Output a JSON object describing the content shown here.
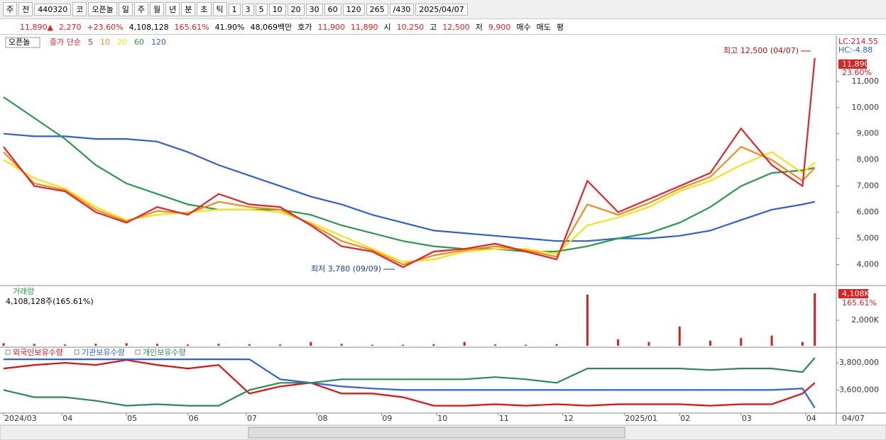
{
  "toolbar": {
    "items": [
      "주",
      "전",
      "440320",
      "코",
      "오픈놀",
      "일",
      "주",
      "월",
      "년",
      "분",
      "초",
      "틱",
      "1",
      "3",
      "5",
      "10",
      "20",
      "30",
      "60",
      "120",
      "265",
      "/430",
      "2025/04/07"
    ]
  },
  "infobar": {
    "items": [
      {
        "text": "11,890▲",
        "color": "#e02020"
      },
      {
        "text": "2,270",
        "color": "#e02020"
      },
      {
        "text": "+23.60%",
        "color": "#e02020"
      },
      {
        "text": "4,108,128",
        "color": "#000000"
      },
      {
        "text": "165.61%",
        "color": "#e02020"
      },
      {
        "text": "41.90%",
        "color": "#000000"
      },
      {
        "text": "48,069백만",
        "color": "#000000"
      },
      {
        "text": "호가",
        "color": "#000000"
      },
      {
        "text": "11,900",
        "color": "#e02020"
      },
      {
        "text": "11,890",
        "color": "#e02020"
      },
      {
        "text": "시",
        "color": "#000000"
      },
      {
        "text": "10,250",
        "color": "#e02020"
      },
      {
        "text": "고",
        "color": "#000000"
      },
      {
        "text": "12,500",
        "color": "#e02020"
      },
      {
        "text": "저",
        "color": "#000000"
      },
      {
        "text": "9,900",
        "color": "#e02020"
      },
      {
        "text": "매수",
        "color": "#000000"
      },
      {
        "text": "매도",
        "color": "#000000"
      },
      {
        "text": "평",
        "color": "#000000"
      }
    ]
  },
  "chart_data": [
    {
      "type": "line",
      "stock_name": "오픈놀",
      "legend_title": "종가 단순",
      "lc": "LC:214.55",
      "hc": "HC:-4.88",
      "last_price": "11,890",
      "last_change": "23.60%",
      "annotations": [
        "최고 12,500 (04/07)",
        "최저 3,780 (09/09)"
      ],
      "x": [
        0,
        10,
        20,
        30,
        40,
        50,
        60,
        70,
        80,
        90,
        100,
        110,
        120,
        130,
        140,
        150,
        160,
        170,
        180,
        190,
        200,
        210,
        220,
        230,
        240,
        250,
        260,
        264
      ],
      "xlim": [
        0,
        271
      ],
      "ylim": [
        3200,
        12700
      ],
      "yticks": [
        {
          "value": 4000,
          "label": "4,000"
        },
        {
          "value": 5000,
          "label": "5,000"
        },
        {
          "value": 6000,
          "label": "6,000"
        },
        {
          "value": 7000,
          "label": "7,000"
        },
        {
          "value": 8000,
          "label": "8,000"
        },
        {
          "value": 9000,
          "label": "9,000"
        },
        {
          "value": 10000,
          "label": "10,000"
        },
        {
          "value": 11000,
          "label": "11,000"
        }
      ],
      "series": [
        {
          "name": "120",
          "color": "#2f5fd8",
          "values": [
            9000,
            8900,
            8900,
            8800,
            8800,
            8700,
            8300,
            7800,
            7400,
            7000,
            6600,
            6300,
            5900,
            5600,
            5300,
            5200,
            5100,
            5000,
            4900,
            4900,
            5000,
            5000,
            5100,
            5300,
            5700,
            6100,
            6300,
            6400
          ]
        },
        {
          "name": "60",
          "color": "#2a9a4a",
          "values": [
            10400,
            9600,
            8800,
            7800,
            7100,
            6700,
            6300,
            6100,
            6100,
            6100,
            5900,
            5500,
            5200,
            4900,
            4700,
            4600,
            4600,
            4500,
            4500,
            4700,
            5000,
            5200,
            5600,
            6200,
            7000,
            7500,
            7600,
            7700
          ]
        },
        {
          "name": "20",
          "color": "#f2e21a",
          "values": [
            8000,
            7300,
            6900,
            6200,
            5700,
            5900,
            6000,
            6100,
            6100,
            6000,
            5600,
            5100,
            4600,
            4100,
            4200,
            4500,
            4600,
            4600,
            4400,
            5500,
            5800,
            6200,
            6800,
            7200,
            7800,
            8300,
            7500,
            7900
          ]
        },
        {
          "name": "10",
          "color": "#f08c1c",
          "values": [
            8300,
            7100,
            6850,
            6100,
            5650,
            6050,
            5950,
            6400,
            6200,
            6100,
            5550,
            4900,
            4550,
            4000,
            4350,
            4550,
            4700,
            4550,
            4300,
            6300,
            5900,
            6350,
            6900,
            7350,
            8500,
            8000,
            7200,
            7700
          ]
        },
        {
          "name": "5",
          "color": "#e0262b",
          "values": [
            8500,
            7000,
            6800,
            6000,
            5600,
            6200,
            5900,
            6700,
            6300,
            6200,
            5500,
            4700,
            4500,
            3900,
            4500,
            4600,
            4800,
            4500,
            4200,
            7200,
            6000,
            6500,
            7000,
            7500,
            9200,
            7800,
            7000,
            11890
          ]
        }
      ]
    },
    {
      "type": "bar",
      "title": "거래량",
      "subtitle": "4,108,128주(165.61%)",
      "last_volume": "4,108K",
      "last_ratio": "165.61%",
      "color": "#d02020",
      "ylim": [
        0,
        4550000
      ],
      "yticks": [
        {
          "value": 2000000,
          "label": "2,000K"
        }
      ],
      "values": [
        200000,
        150000,
        100000,
        150000,
        200000,
        150000,
        100000,
        150000,
        120000,
        100000,
        300000,
        150000,
        80000,
        80000,
        120000,
        300000,
        100000,
        80000,
        120000,
        4000000,
        500000,
        300000,
        1500000,
        400000,
        600000,
        800000,
        300000,
        4108128
      ]
    },
    {
      "type": "line",
      "ylim": [
        3430000,
        3910000
      ],
      "yticks": [
        {
          "value": 3800000,
          "label": "3,800,000"
        },
        {
          "value": 3600000,
          "label": "3,600,000"
        }
      ],
      "xticks": [
        {
          "value": 0,
          "label": "2024/03"
        },
        {
          "value": 19,
          "label": "04"
        },
        {
          "value": 40,
          "label": "05"
        },
        {
          "value": 60,
          "label": "06"
        },
        {
          "value": 79,
          "label": "07"
        },
        {
          "value": 102,
          "label": "08"
        },
        {
          "value": 123,
          "label": "09"
        },
        {
          "value": 141,
          "label": "10"
        },
        {
          "value": 161,
          "label": "11"
        },
        {
          "value": 182,
          "label": "12"
        },
        {
          "value": 202,
          "label": "2025/01"
        },
        {
          "value": 220,
          "label": "02"
        },
        {
          "value": 240,
          "label": "03"
        },
        {
          "value": 261,
          "label": "04"
        }
      ],
      "last_date": "04/07",
      "series": [
        {
          "name": "외국인보유수량",
          "color": "#e01010",
          "values": [
            3758000,
            3784000,
            3800000,
            3784000,
            3821000,
            3784000,
            3758000,
            3784000,
            3574000,
            3626000,
            3653000,
            3574000,
            3574000,
            3547000,
            3484000,
            3484000,
            3495000,
            3484000,
            3495000,
            3484000,
            3495000,
            3495000,
            3495000,
            3484000,
            3495000,
            3495000,
            3574000,
            3653000
          ]
        },
        {
          "name": "기관보유수량",
          "color": "#3060e0",
          "values": [
            3826000,
            3826000,
            3826000,
            3826000,
            3826000,
            3826000,
            3826000,
            3826000,
            3826000,
            3679000,
            3653000,
            3626000,
            3611000,
            3600000,
            3600000,
            3600000,
            3600000,
            3600000,
            3600000,
            3600000,
            3600000,
            3600000,
            3600000,
            3600000,
            3600000,
            3600000,
            3611000,
            3468000
          ]
        },
        {
          "name": "개인보유수량",
          "color": "#2a8a55",
          "values": [
            3600000,
            3547000,
            3547000,
            3521000,
            3484000,
            3495000,
            3484000,
            3484000,
            3600000,
            3653000,
            3653000,
            3679000,
            3679000,
            3679000,
            3679000,
            3679000,
            3695000,
            3679000,
            3653000,
            3758000,
            3758000,
            3758000,
            3758000,
            3747000,
            3758000,
            3758000,
            3732000,
            3837000
          ]
        }
      ]
    }
  ]
}
